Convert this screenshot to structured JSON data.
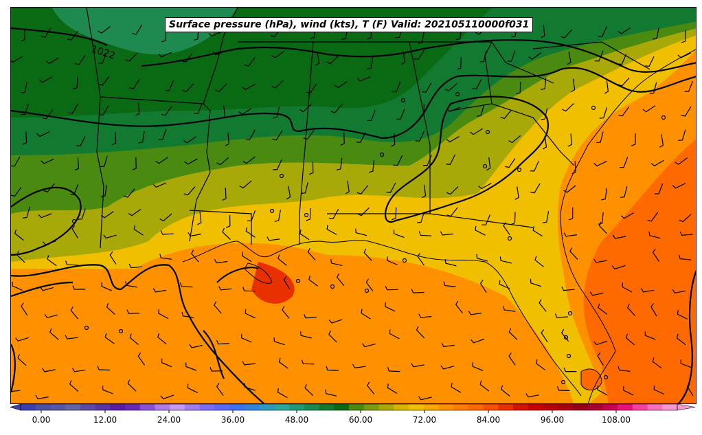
{
  "title": "Surface pressure (hPa), wind (kts), T (F) Valid: 202105110000f031",
  "isobar_labels": [
    "1022"
  ],
  "colorbar": {
    "colors": [
      "#3b3fb0",
      "#4a50a8",
      "#5657a6",
      "#6264a8",
      "#5c4aa8",
      "#5a34a6",
      "#5a1ea6",
      "#6a28b6",
      "#8a50d6",
      "#b07ae8",
      "#c69af2",
      "#a07cf0",
      "#7a6cf4",
      "#5a6af4",
      "#3a72f0",
      "#2f84d8",
      "#2f98c0",
      "#2aa89c",
      "#1f9a74",
      "#1a8a50",
      "#127a30",
      "#0a6a14",
      "#4a8a10",
      "#7a9a10",
      "#a8a808",
      "#d8b400",
      "#f0c000",
      "#f8a800",
      "#ff9000",
      "#ff7c00",
      "#ff6a00",
      "#f85000",
      "#e83000",
      "#d81000",
      "#c80000",
      "#b80008",
      "#a80010",
      "#980018",
      "#a80030",
      "#c80050",
      "#e8107a",
      "#f840a0",
      "#f870c0",
      "#f898d0"
    ],
    "tick_labels": [
      "0.00",
      "12.00",
      "24.00",
      "36.00",
      "48.00",
      "60.00",
      "72.00",
      "84.00",
      "96.00",
      "108.00"
    ]
  },
  "wind_barbs_note": "",
  "station_circles": ""
}
